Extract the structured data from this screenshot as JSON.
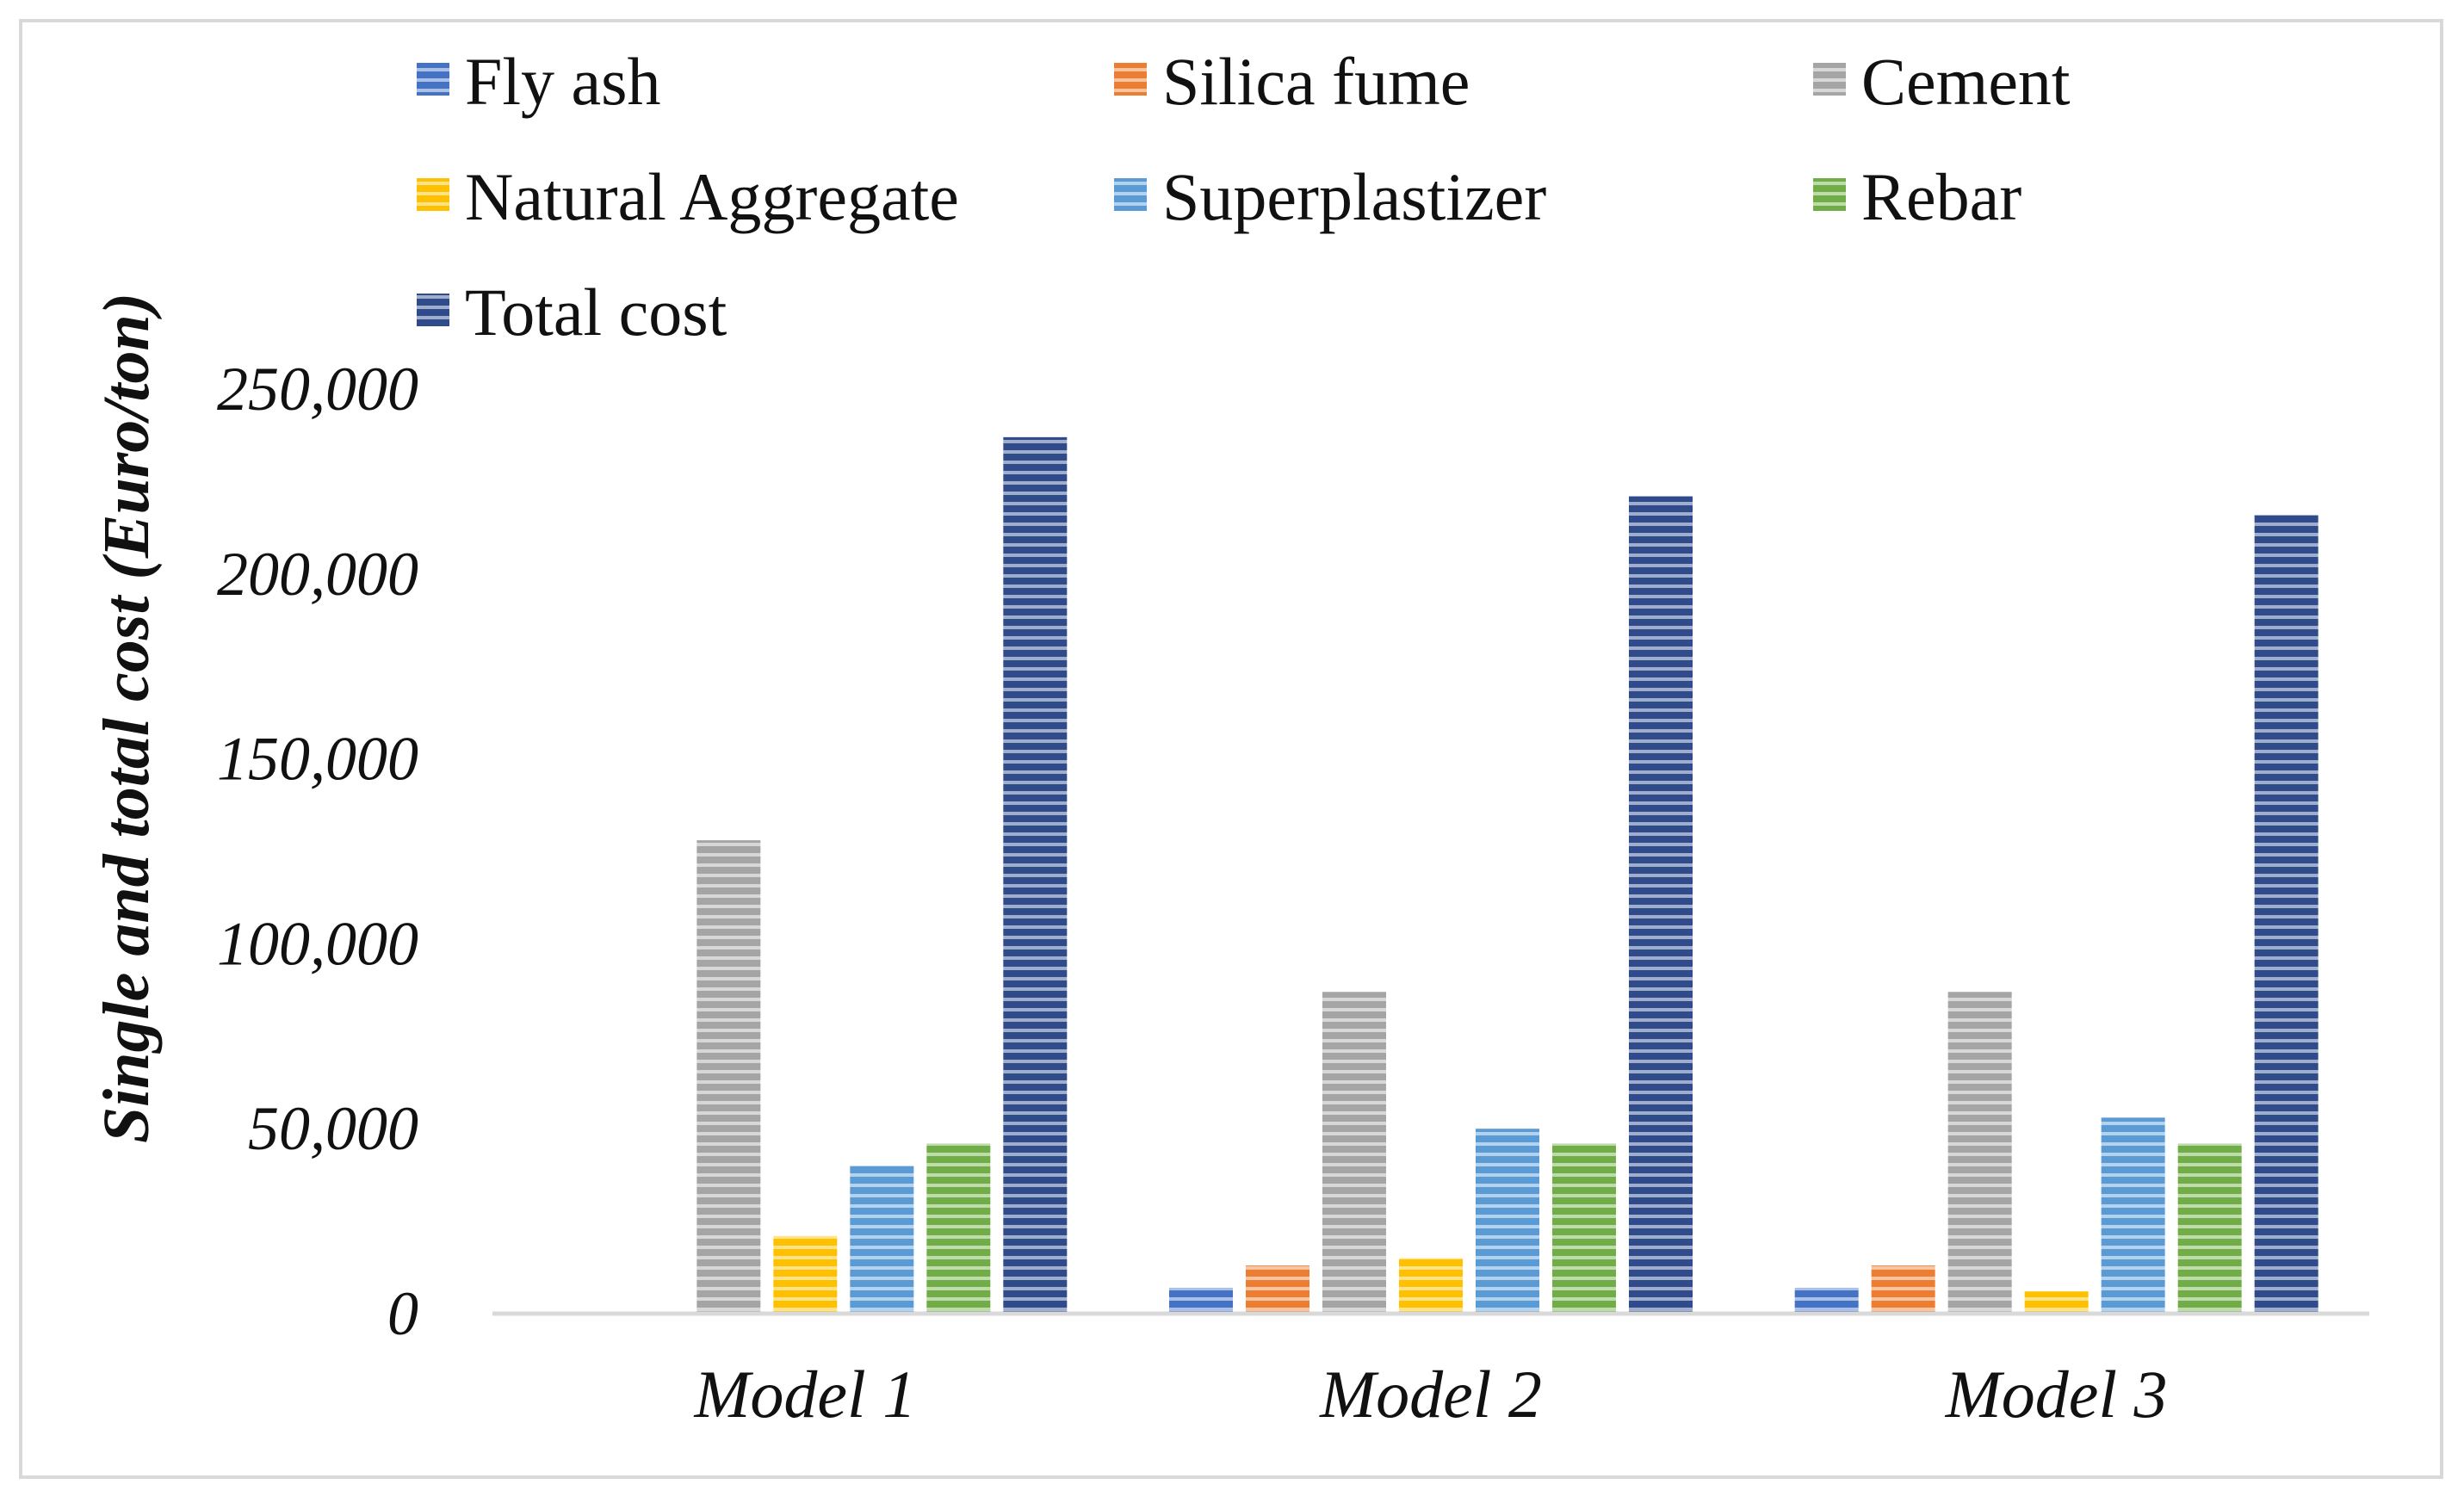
{
  "chart_data": {
    "type": "bar",
    "title": "",
    "xlabel": "",
    "ylabel": "Single and total cost (Euro/ton)",
    "ylim": [
      0,
      250000
    ],
    "yticks": [
      0,
      50000,
      100000,
      150000,
      200000,
      250000
    ],
    "ytick_labels": [
      "0",
      "50,000",
      "100,000",
      "150,000",
      "200,000",
      "250,000"
    ],
    "grid": false,
    "legend_position": "top",
    "categories": [
      "Model 1",
      "Model 2",
      "Model 3"
    ],
    "series": [
      {
        "name": "Fly ash",
        "color": "#4472c4",
        "values": [
          0,
          7000,
          7000
        ]
      },
      {
        "name": "Silica fume",
        "color": "#ed7d31",
        "values": [
          0,
          13000,
          13000
        ]
      },
      {
        "name": "Cement",
        "color": "#a5a5a5",
        "values": [
          128000,
          87000,
          87000
        ]
      },
      {
        "name": "Natural Aggregate",
        "color": "#ffc000",
        "values": [
          21000,
          15000,
          6000
        ]
      },
      {
        "name": "Superplastizer",
        "color": "#5b9bd5",
        "values": [
          40000,
          50000,
          53000
        ]
      },
      {
        "name": "Rebar",
        "color": "#70ad47",
        "values": [
          46000,
          46000,
          46000
        ]
      },
      {
        "name": "Total cost",
        "color": "#2f4b8c",
        "values": [
          237000,
          221000,
          216000
        ]
      }
    ]
  }
}
